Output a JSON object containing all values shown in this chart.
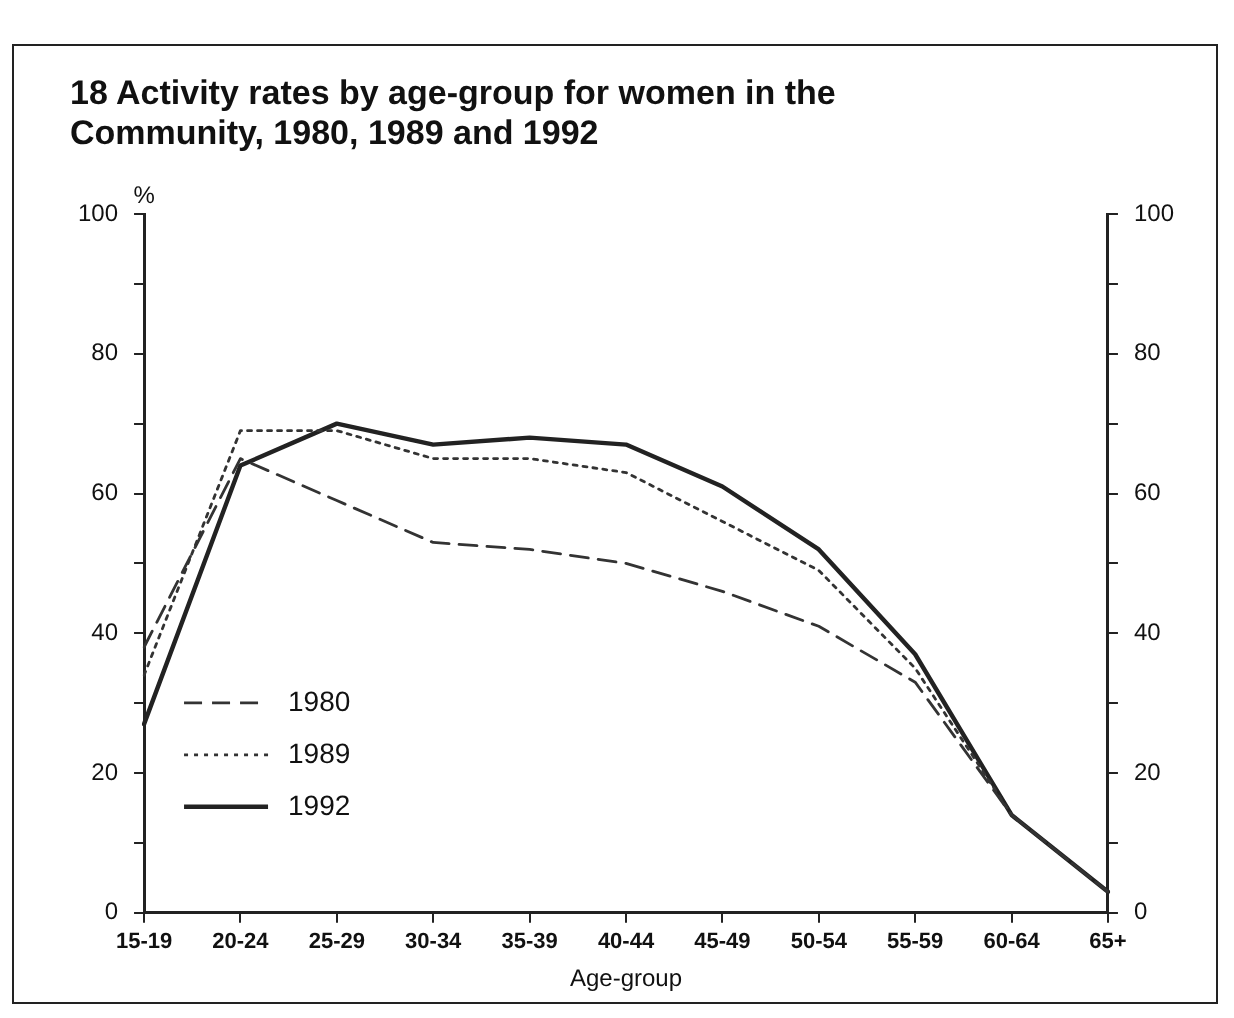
{
  "chart_data": {
    "type": "line",
    "title": "18   Activity rates by age-group for women in the Community, 1980, 1989 and 1992",
    "xlabel": "Age-group",
    "ylabel": "%",
    "categories": [
      "15-19",
      "20-24",
      "25-29",
      "30-34",
      "35-39",
      "40-44",
      "45-49",
      "50-54",
      "55-59",
      "60-64",
      "65+"
    ],
    "series": [
      {
        "name": "1980",
        "color": "#333333",
        "line_style": "dashed",
        "values": [
          38,
          65,
          59,
          53,
          52,
          50,
          46,
          41,
          33,
          14,
          3
        ]
      },
      {
        "name": "1989",
        "color": "#333333",
        "line_style": "dotted",
        "values": [
          34,
          69,
          69,
          65,
          65,
          63,
          56,
          49,
          35,
          14,
          3
        ]
      },
      {
        "name": "1992",
        "color": "#222222",
        "line_style": "solid",
        "values": [
          27,
          64,
          70,
          67,
          68,
          67,
          61,
          52,
          37,
          14,
          3
        ]
      }
    ],
    "ylim": [
      0,
      100
    ],
    "yticks": [
      0,
      {
        "value": 10,
        "label": null
      },
      20,
      {
        "value": 30,
        "label": null
      },
      40,
      {
        "value": 50,
        "label": null
      },
      60,
      {
        "value": 70,
        "label": null
      },
      80,
      {
        "value": 90,
        "label": null
      },
      100
    ],
    "y2lim": [
      0,
      100
    ],
    "y2ticks": [
      0,
      {
        "value": 10,
        "label": null
      },
      20,
      {
        "value": 30,
        "label": null
      },
      40,
      {
        "value": 50,
        "label": null
      },
      60,
      {
        "value": 70,
        "label": null
      },
      80,
      {
        "value": 90,
        "label": null
      },
      100
    ],
    "grid": false,
    "legend": "bottom left",
    "marker": "none"
  }
}
